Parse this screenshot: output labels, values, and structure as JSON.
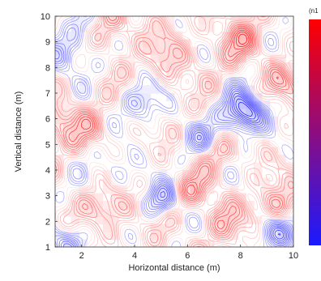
{
  "chart_data": {
    "type": "contour",
    "xlabel": "Horizontal distance (m)",
    "ylabel": "Vertical distance (m)",
    "xlim": [
      1,
      10
    ],
    "ylim": [
      1,
      10
    ],
    "x_ticks": [
      2,
      4,
      6,
      8,
      10
    ],
    "y_ticks": [
      1,
      2,
      3,
      4,
      5,
      6,
      7,
      8,
      9,
      10
    ],
    "colorbar": {
      "unit_label": "(n1",
      "color_low": "#1a1aff",
      "color_high": "#ff0000"
    },
    "colormap": [
      "#1a1aff",
      "#ffffff",
      "#ff0000"
    ],
    "grid": false,
    "legend": "none",
    "features": [
      {
        "x": 8.1,
        "y": 6.2,
        "amp": -1.0,
        "s": 0.55
      },
      {
        "x": 5.0,
        "y": 2.8,
        "amp": -0.6,
        "s": 0.45
      },
      {
        "x": 9.3,
        "y": 1.5,
        "amp": -0.5,
        "s": 0.5
      },
      {
        "x": 1.4,
        "y": 1.2,
        "amp": -0.5,
        "s": 0.5
      },
      {
        "x": 4.3,
        "y": 6.6,
        "amp": -0.45,
        "s": 0.55
      },
      {
        "x": 1.4,
        "y": 8.6,
        "amp": -0.45,
        "s": 0.6
      },
      {
        "x": 2.2,
        "y": 9.6,
        "amp": -0.35,
        "s": 0.5
      },
      {
        "x": 6.5,
        "y": 5.2,
        "amp": -0.35,
        "s": 0.5
      },
      {
        "x": 3.3,
        "y": 4.0,
        "amp": -0.3,
        "s": 0.6
      },
      {
        "x": 3.0,
        "y": 9.5,
        "amp": 0.4,
        "s": 0.55
      },
      {
        "x": 7.9,
        "y": 9.0,
        "amp": 0.35,
        "s": 0.6
      },
      {
        "x": 9.3,
        "y": 2.6,
        "amp": 0.35,
        "s": 0.5
      },
      {
        "x": 1.2,
        "y": 6.0,
        "amp": 0.35,
        "s": 0.55
      },
      {
        "x": 3.0,
        "y": 2.5,
        "amp": 0.35,
        "s": 0.6
      },
      {
        "x": 7.4,
        "y": 2.0,
        "amp": 0.3,
        "s": 0.55
      },
      {
        "x": 5.2,
        "y": 8.4,
        "amp": 0.3,
        "s": 0.6
      },
      {
        "x": 6.2,
        "y": 3.2,
        "amp": 0.3,
        "s": 0.5
      },
      {
        "x": 9.6,
        "y": 7.4,
        "amp": 0.3,
        "s": 0.5
      },
      {
        "x": 2.4,
        "y": 5.5,
        "amp": 0.25,
        "s": 0.5
      },
      {
        "x": 7.1,
        "y": 4.6,
        "amp": 0.25,
        "s": 0.45
      }
    ],
    "contour_levels": 14
  }
}
